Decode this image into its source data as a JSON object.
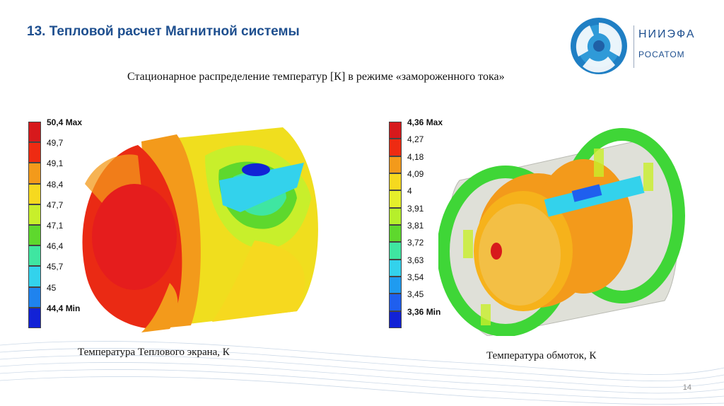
{
  "title": "13. Тепловой расчет Магнитной системы",
  "logo": {
    "org": "НИИЭФА",
    "group": "РОСАТОМ"
  },
  "subtitle": "Стационарное распределение температур [К] в режиме «замороженного тока»",
  "left": {
    "caption": "Температура Теплового экрана, К",
    "legend": [
      "50,4 Max",
      "49,7",
      "49,1",
      "48,4",
      "47,7",
      "47,1",
      "46,4",
      "45,7",
      "45",
      "44,4 Min"
    ],
    "colors": [
      "#d7191c",
      "#ee2b12",
      "#f39a1b",
      "#f6d91f",
      "#c8ef2b",
      "#5ed82d",
      "#3fe6a1",
      "#33d2ec",
      "#1f83ee",
      "#1222d6"
    ]
  },
  "right": {
    "caption": "Температура обмоток, К",
    "legend": [
      "4,36 Max",
      "4,27",
      "4,18",
      "4,09",
      "4",
      "3,91",
      "3,81",
      "3,72",
      "3,63",
      "3,54",
      "3,45",
      "3,36 Min"
    ],
    "colors": [
      "#d7191c",
      "#ee2b12",
      "#f39a1b",
      "#f6d91f",
      "#e5ef2b",
      "#b6ef2b",
      "#5ed82d",
      "#3fe6a1",
      "#33d2ec",
      "#1f9bf0",
      "#1f5fee",
      "#1222d6"
    ]
  },
  "page": "14"
}
